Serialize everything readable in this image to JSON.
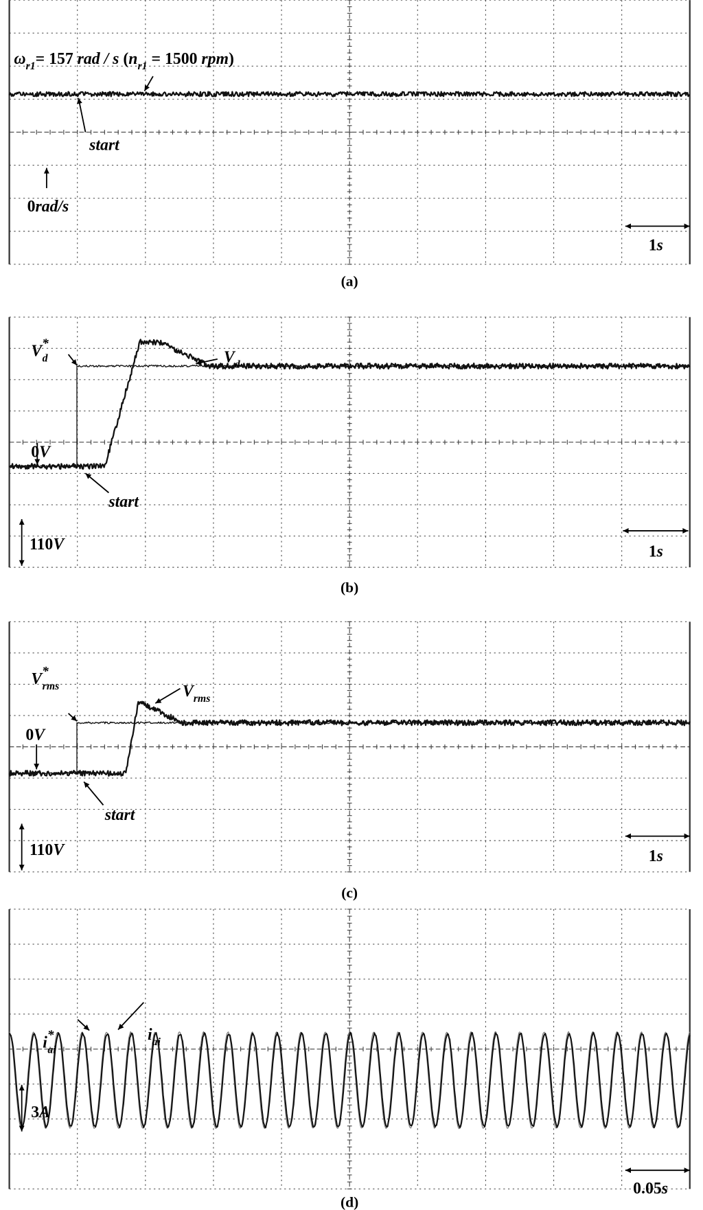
{
  "panels": [
    {
      "label": "(a)",
      "annotations": [
        {
          "runs": [
            {
              "text": "ω",
              "style": "i"
            },
            {
              "text": "r1",
              "style": "sub"
            },
            {
              "text": "= 157 "
            },
            {
              "text": "rad / s",
              "style": "i"
            },
            {
              "text": " ("
            },
            {
              "text": "n",
              "style": "i"
            },
            {
              "text": "r1",
              "style": "sub"
            },
            {
              "text": " = 1500 "
            },
            {
              "text": "rpm",
              "style": "i"
            },
            {
              "text": ")"
            }
          ]
        },
        {
          "runs": [
            {
              "text": "start",
              "style": "i"
            }
          ]
        },
        {
          "runs": [
            {
              "text": "0"
            },
            {
              "text": "rad/s",
              "style": "i"
            }
          ]
        },
        {
          "runs": [
            {
              "text": "1"
            },
            {
              "text": "s",
              "style": "i"
            }
          ]
        }
      ]
    },
    {
      "label": "(b)",
      "annotations": [
        {
          "runs": [
            {
              "text": "V",
              "style": "i"
            },
            {
              "text": "*",
              "style": "sup"
            },
            {
              "text": "d",
              "style": "sub"
            }
          ]
        },
        {
          "runs": [
            {
              "text": "V",
              "style": "i"
            },
            {
              "text": "d",
              "style": "sub"
            }
          ]
        },
        {
          "runs": [
            {
              "text": "0"
            },
            {
              "text": "V",
              "style": "i"
            }
          ]
        },
        {
          "runs": [
            {
              "text": "start",
              "style": "i"
            }
          ]
        },
        {
          "runs": [
            {
              "text": "110"
            },
            {
              "text": "V",
              "style": "i"
            }
          ]
        },
        {
          "runs": [
            {
              "text": "1"
            },
            {
              "text": "s",
              "style": "i"
            }
          ]
        }
      ]
    },
    {
      "label": "(c)",
      "annotations": [
        {
          "runs": [
            {
              "text": "V",
              "style": "i"
            },
            {
              "text": "*",
              "style": "sup"
            },
            {
              "text": "rms",
              "style": "sub"
            }
          ]
        },
        {
          "runs": [
            {
              "text": "V",
              "style": "i"
            },
            {
              "text": "rms",
              "style": "sub"
            }
          ]
        },
        {
          "runs": [
            {
              "text": "0"
            },
            {
              "text": "V",
              "style": "i"
            }
          ]
        },
        {
          "runs": [
            {
              "text": "start",
              "style": "i"
            }
          ]
        },
        {
          "runs": [
            {
              "text": "110"
            },
            {
              "text": "V",
              "style": "i"
            }
          ]
        },
        {
          "runs": [
            {
              "text": "1"
            },
            {
              "text": "s",
              "style": "i"
            }
          ]
        }
      ]
    },
    {
      "label": "(d)",
      "annotations": [
        {
          "runs": [
            {
              "text": "i",
              "style": "i"
            },
            {
              "text": "*",
              "style": "sup"
            },
            {
              "text": "ai",
              "style": "sub"
            }
          ]
        },
        {
          "runs": [
            {
              "text": "i",
              "style": "i"
            },
            {
              "text": "ai",
              "style": "sub"
            }
          ]
        },
        {
          "runs": [
            {
              "text": "3"
            },
            {
              "text": "A",
              "style": "i"
            }
          ]
        },
        {
          "runs": [
            {
              "text": "0.05"
            },
            {
              "text": "s",
              "style": "i"
            }
          ]
        }
      ]
    }
  ]
}
